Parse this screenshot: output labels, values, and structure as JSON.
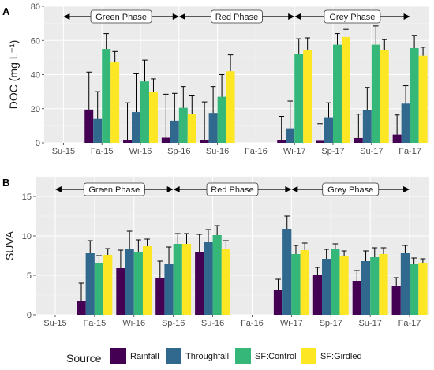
{
  "chart_data": [
    {
      "type": "bar",
      "panel_label": "A",
      "ylabel": "DOC (mg L⁻¹)",
      "xlabel": "",
      "ylim": [
        0,
        80
      ],
      "yticks": [
        0,
        20,
        40,
        60,
        80
      ],
      "grid": true,
      "categories": [
        "Su-15",
        "Fa-15",
        "Wi-16",
        "Sp-16",
        "Su-16",
        "Fa-16",
        "Wi-17",
        "Sp-17",
        "Su-17",
        "Fa-17"
      ],
      "phases": [
        {
          "label": "Green Phase",
          "from": "Su-15",
          "to": "Sp-16"
        },
        {
          "label": "Red Phase",
          "from": "Sp-16",
          "to": "Wi-17"
        },
        {
          "label": "Grey Phase",
          "from": "Wi-17",
          "to": "Fa-17"
        }
      ],
      "series": [
        {
          "name": "Rainfall",
          "values": [
            null,
            19.5,
            1.5,
            3,
            1.5,
            null,
            1.5,
            1.2,
            2.8,
            4.8
          ],
          "errors": [
            null,
            22,
            22,
            25.5,
            22.5,
            null,
            14,
            10,
            14,
            11.5
          ]
        },
        {
          "name": "Throughfall",
          "values": [
            null,
            14,
            18,
            13,
            17.5,
            null,
            8.5,
            15,
            19,
            23
          ],
          "errors": [
            null,
            16,
            22.5,
            16,
            15.5,
            null,
            16,
            8.5,
            13.5,
            10.5
          ]
        },
        {
          "name": "SF:Control",
          "values": [
            null,
            55,
            36,
            20.5,
            27,
            null,
            52,
            57.5,
            57.5,
            55.5
          ],
          "errors": [
            null,
            9,
            12.5,
            12.5,
            13,
            null,
            9,
            6.5,
            11,
            7.5
          ]
        },
        {
          "name": "SF:Girdled",
          "values": [
            null,
            47.5,
            30,
            17,
            42,
            null,
            54.5,
            62,
            54.5,
            51
          ],
          "errors": [
            null,
            6,
            7.5,
            10.5,
            9.5,
            null,
            7,
            4.5,
            6,
            5
          ]
        }
      ]
    },
    {
      "type": "bar",
      "panel_label": "B",
      "ylabel": "SUVA",
      "xlabel": "",
      "ylim": [
        0,
        17.5
      ],
      "yticks": [
        0,
        5,
        10,
        15
      ],
      "grid": true,
      "categories": [
        "Su-15",
        "Fa-15",
        "Wi-16",
        "Sp-16",
        "Su-16",
        "Fa-16",
        "Wi-17",
        "Sp-17",
        "Su-17",
        "Fa-17"
      ],
      "phases": [
        {
          "label": "Green Phase",
          "from": "Su-15",
          "to": "Sp-16"
        },
        {
          "label": "Red Phase",
          "from": "Sp-16",
          "to": "Wi-17"
        },
        {
          "label": "Grey Phase",
          "from": "Wi-17",
          "to": "Fa-17"
        }
      ],
      "series": [
        {
          "name": "Rainfall",
          "values": [
            null,
            1.7,
            5.9,
            4.6,
            8.0,
            null,
            3.2,
            5.0,
            4.3,
            3.6
          ],
          "errors": [
            null,
            2.3,
            2.3,
            2.2,
            2.2,
            null,
            1.3,
            1.0,
            1.3,
            1.1
          ]
        },
        {
          "name": "Throughfall",
          "values": [
            null,
            7.8,
            8.4,
            6.4,
            9.2,
            null,
            10.9,
            7.1,
            6.8,
            7.8
          ],
          "errors": [
            null,
            1.6,
            2.2,
            2.2,
            1.6,
            null,
            1.6,
            1.2,
            1.3,
            1.0
          ]
        },
        {
          "name": "SF:Control",
          "values": [
            null,
            6.5,
            8.0,
            9.0,
            10.1,
            null,
            7.7,
            8.4,
            7.3,
            6.4
          ],
          "errors": [
            null,
            1.0,
            1.5,
            1.3,
            1.2,
            null,
            1.1,
            0.6,
            1.2,
            0.8
          ]
        },
        {
          "name": "SF:Girdled",
          "values": [
            null,
            7.6,
            8.7,
            9.0,
            8.3,
            null,
            8.2,
            7.5,
            7.7,
            6.6
          ],
          "errors": [
            null,
            0.8,
            0.9,
            1.3,
            1.1,
            null,
            0.9,
            0.6,
            0.8,
            0.5
          ]
        }
      ]
    }
  ],
  "legend": {
    "title": "Source",
    "position": "bottom",
    "items": [
      {
        "label": "Rainfall",
        "color": "#440154"
      },
      {
        "label": "Throughfall",
        "color": "#31688e"
      },
      {
        "label": "SF:Control",
        "color": "#35b779"
      },
      {
        "label": "SF:Girdled",
        "color": "#fde725"
      }
    ]
  },
  "colors": {
    "Rainfall": "#440154",
    "Throughfall": "#31688e",
    "SF:Control": "#35b779",
    "SF:Girdled": "#fde725",
    "panel_background": "#ebebeb"
  }
}
